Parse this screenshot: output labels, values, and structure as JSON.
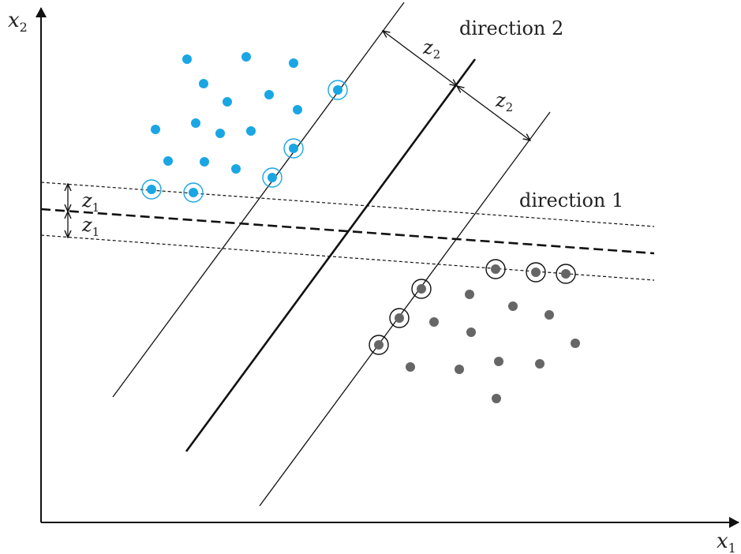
{
  "axes": {
    "x_label": {
      "base": "x",
      "sub": "1"
    },
    "y_label": {
      "base": "x",
      "sub": "2"
    }
  },
  "labels": {
    "direction1": "direction 1",
    "direction2": "direction 2",
    "z1": {
      "base": "z",
      "sub": "1"
    },
    "z2": {
      "base": "z",
      "sub": "2"
    }
  },
  "colors": {
    "class_a": "#1aa6e4",
    "class_b": "#666666",
    "lines": "#111111"
  },
  "icons": {
    "margin_arrow": "double-headed-arrow",
    "support_vector_marker": "ring"
  }
}
